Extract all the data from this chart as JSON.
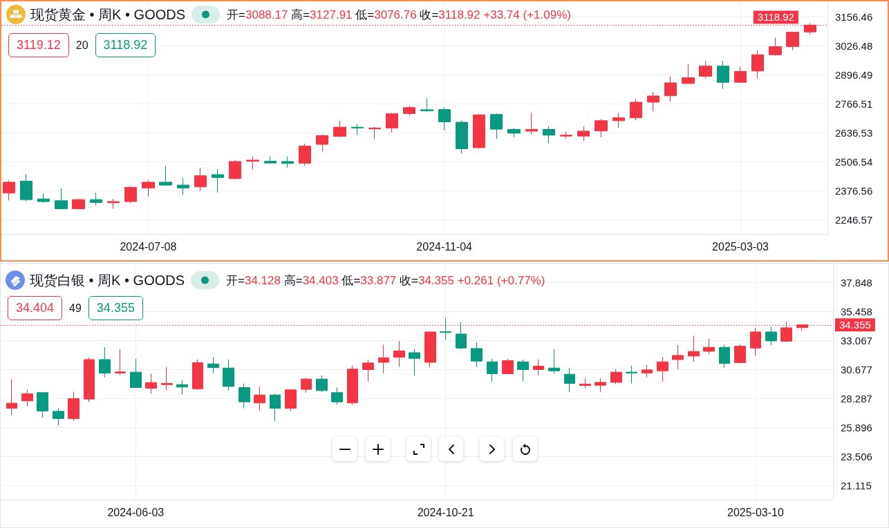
{
  "chart_data": [
    {
      "type": "candlestick",
      "title": "现货黄金 • 周K • GOODS",
      "subtitle": "开=3088.17 高=3127.91 低=3076.76 收=3118.92 +33.74 (+1.09%)",
      "annotations": [
        "3119.12",
        "20",
        "3118.92"
      ],
      "x": [
        "2024-05-13",
        "2024-05-20",
        "2024-05-27",
        "2024-06-03",
        "2024-06-10",
        "2024-06-17",
        "2024-06-24",
        "2024-07-01",
        "2024-07-08",
        "2024-07-15",
        "2024-07-22",
        "2024-07-29",
        "2024-08-05",
        "2024-08-12",
        "2024-08-19",
        "2024-08-26",
        "2024-09-02",
        "2024-09-09",
        "2024-09-16",
        "2024-09-23",
        "2024-09-30",
        "2024-10-07",
        "2024-10-14",
        "2024-10-21",
        "2024-10-28",
        "2024-11-04",
        "2024-11-11",
        "2024-11-18",
        "2024-11-25",
        "2024-12-02",
        "2024-12-09",
        "2024-12-16",
        "2024-12-23",
        "2024-12-30",
        "2025-01-06",
        "2025-01-13",
        "2025-01-20",
        "2025-01-27",
        "2025-02-03",
        "2025-02-10",
        "2025-02-17",
        "2025-02-24",
        "2025-03-03",
        "2025-03-10",
        "2025-03-17",
        "2025-03-24",
        "2025-03-31"
      ],
      "ohlc": [
        [
          2365,
          2424,
          2332,
          2414
        ],
        [
          2419,
          2451,
          2329,
          2336
        ],
        [
          2339,
          2365,
          2322,
          2327
        ],
        [
          2331,
          2386,
          2291,
          2295
        ],
        [
          2295,
          2339,
          2292,
          2336
        ],
        [
          2336,
          2367,
          2310,
          2323
        ],
        [
          2322,
          2339,
          2295,
          2327
        ],
        [
          2327,
          2396,
          2320,
          2391
        ],
        [
          2388,
          2424,
          2350,
          2414
        ],
        [
          2414,
          2487,
          2398,
          2401
        ],
        [
          2401,
          2432,
          2357,
          2388
        ],
        [
          2393,
          2479,
          2375,
          2443
        ],
        [
          2448,
          2473,
          2367,
          2435
        ],
        [
          2430,
          2513,
          2425,
          2507
        ],
        [
          2508,
          2530,
          2471,
          2513
        ],
        [
          2508,
          2530,
          2497,
          2500
        ],
        [
          2507,
          2530,
          2479,
          2498
        ],
        [
          2499,
          2587,
          2487,
          2576
        ],
        [
          2584,
          2628,
          2551,
          2623
        ],
        [
          2620,
          2690,
          2616,
          2661
        ],
        [
          2661,
          2675,
          2626,
          2657
        ],
        [
          2653,
          2662,
          2608,
          2657
        ],
        [
          2657,
          2726,
          2638,
          2721
        ],
        [
          2722,
          2757,
          2713,
          2749
        ],
        [
          2739,
          2791,
          2728,
          2734
        ],
        [
          2740,
          2749,
          2646,
          2685
        ],
        [
          2683,
          2690,
          2543,
          2564
        ],
        [
          2569,
          2719,
          2566,
          2716
        ],
        [
          2718,
          2722,
          2608,
          2652
        ],
        [
          2651,
          2657,
          2616,
          2634
        ],
        [
          2643,
          2726,
          2629,
          2651
        ],
        [
          2651,
          2665,
          2589,
          2625
        ],
        [
          2621,
          2641,
          2610,
          2625
        ],
        [
          2621,
          2665,
          2599,
          2643
        ],
        [
          2644,
          2698,
          2616,
          2690
        ],
        [
          2690,
          2726,
          2657,
          2703
        ],
        [
          2703,
          2786,
          2692,
          2773
        ],
        [
          2773,
          2819,
          2731,
          2801
        ],
        [
          2802,
          2888,
          2775,
          2860
        ],
        [
          2857,
          2943,
          2857,
          2883
        ],
        [
          2889,
          2958,
          2880,
          2935
        ],
        [
          2935,
          2959,
          2833,
          2862
        ],
        [
          2862,
          2931,
          2862,
          2911
        ],
        [
          2913,
          3005,
          2880,
          2986
        ],
        [
          2986,
          3062,
          2982,
          3022
        ],
        [
          3023,
          3087,
          3007,
          3087
        ],
        [
          3088.17,
          3127.91,
          3076.76,
          3118.92
        ]
      ],
      "xlim": [
        "2024-05-10",
        "2025-04-07"
      ],
      "xticks": [
        "2024-07-08",
        "2024-11-04",
        "2025-03-03"
      ],
      "ylim": [
        2181.6,
        3222.3
      ],
      "yticks": [
        2246.57,
        2376.56,
        2506.54,
        2636.53,
        2766.51,
        2896.49,
        3026.48,
        3156.46
      ],
      "grid": true,
      "ref_lines": [
        {
          "axis": "y",
          "value": 3118.92,
          "label": "3118.92",
          "color": "#f23645",
          "line_style": "dotted"
        }
      ]
    },
    {
      "type": "candlestick",
      "title": "现货白银 • 周K • GOODS",
      "subtitle": "开=34.128 高=34.403 低=33.877 收=34.355 +0.261 (+0.77%)",
      "annotations": [
        "34.404",
        "49",
        "34.355"
      ],
      "x": [
        "2024-04-08",
        "2024-04-15",
        "2024-04-22",
        "2024-04-29",
        "2024-05-06",
        "2024-05-13",
        "2024-05-20",
        "2024-05-27",
        "2024-06-03",
        "2024-06-10",
        "2024-06-17",
        "2024-06-24",
        "2024-07-01",
        "2024-07-08",
        "2024-07-15",
        "2024-07-22",
        "2024-07-29",
        "2024-08-05",
        "2024-08-12",
        "2024-08-19",
        "2024-08-26",
        "2024-09-02",
        "2024-09-09",
        "2024-09-16",
        "2024-09-23",
        "2024-09-30",
        "2024-10-07",
        "2024-10-14",
        "2024-10-21",
        "2024-10-28",
        "2024-11-04",
        "2024-11-11",
        "2024-11-18",
        "2024-11-25",
        "2024-12-02",
        "2024-12-09",
        "2024-12-16",
        "2024-12-23",
        "2024-12-30",
        "2025-01-06",
        "2025-01-13",
        "2025-01-20",
        "2025-01-27",
        "2025-02-03",
        "2025-02-10",
        "2025-02-17",
        "2025-02-24",
        "2025-03-03",
        "2025-03-10",
        "2025-03-17",
        "2025-03-24",
        "2025-03-31"
      ],
      "ohlc": [
        [
          27.47,
          29.84,
          26.9,
          27.89
        ],
        [
          28.08,
          28.99,
          27.62,
          28.67
        ],
        [
          28.76,
          28.76,
          26.71,
          27.24
        ],
        [
          27.22,
          27.47,
          26.05,
          26.62
        ],
        [
          26.62,
          28.84,
          26.43,
          28.27
        ],
        [
          28.23,
          31.64,
          27.98,
          31.49
        ],
        [
          31.49,
          32.5,
          30.03,
          30.37
        ],
        [
          30.37,
          32.35,
          30.22,
          30.47
        ],
        [
          30.45,
          31.55,
          29.18,
          29.18
        ],
        [
          29.12,
          30.32,
          28.67,
          29.59
        ],
        [
          29.42,
          30.88,
          28.95,
          29.52
        ],
        [
          29.42,
          29.78,
          28.61,
          29.22
        ],
        [
          29.08,
          31.49,
          28.99,
          31.23
        ],
        [
          31.13,
          31.7,
          30.37,
          30.83
        ],
        [
          30.79,
          31.49,
          28.93,
          29.27
        ],
        [
          29.18,
          29.5,
          27.47,
          28.0
        ],
        [
          27.91,
          29.27,
          27.28,
          28.57
        ],
        [
          28.57,
          28.67,
          26.43,
          27.47
        ],
        [
          27.47,
          28.99,
          27.24,
          28.99
        ],
        [
          29.03,
          29.99,
          28.76,
          29.88
        ],
        [
          29.88,
          30.18,
          28.8,
          28.93
        ],
        [
          28.76,
          29.18,
          27.75,
          28.0
        ],
        [
          27.91,
          30.98,
          27.75,
          30.7
        ],
        [
          30.66,
          31.49,
          29.69,
          31.21
        ],
        [
          31.26,
          32.73,
          30.37,
          31.64
        ],
        [
          31.68,
          33.03,
          30.88,
          32.21
        ],
        [
          32.06,
          32.35,
          30.16,
          31.59
        ],
        [
          31.26,
          33.77,
          30.85,
          33.77
        ],
        [
          33.79,
          34.91,
          33.1,
          33.73
        ],
        [
          33.6,
          34.58,
          32.36,
          32.44
        ],
        [
          32.4,
          32.91,
          30.88,
          31.36
        ],
        [
          31.3,
          31.55,
          29.69,
          30.32
        ],
        [
          30.32,
          31.55,
          30.32,
          31.4
        ],
        [
          31.3,
          31.49,
          29.69,
          30.66
        ],
        [
          30.66,
          31.49,
          30.16,
          30.94
        ],
        [
          30.79,
          32.35,
          30.32,
          30.56
        ],
        [
          30.28,
          30.79,
          28.8,
          29.52
        ],
        [
          29.35,
          29.94,
          29.14,
          29.46
        ],
        [
          29.37,
          29.94,
          28.8,
          29.61
        ],
        [
          29.61,
          30.7,
          29.46,
          30.45
        ],
        [
          30.45,
          30.98,
          29.52,
          30.37
        ],
        [
          30.37,
          31.04,
          30.03,
          30.64
        ],
        [
          30.56,
          31.7,
          29.69,
          31.3
        ],
        [
          31.49,
          32.69,
          30.7,
          31.83
        ],
        [
          31.78,
          33.45,
          31.32,
          32.16
        ],
        [
          32.17,
          33.2,
          31.93,
          32.5
        ],
        [
          32.5,
          32.74,
          30.83,
          31.17
        ],
        [
          31.23,
          32.73,
          31.17,
          32.59
        ],
        [
          32.44,
          34.11,
          31.83,
          33.77
        ],
        [
          33.77,
          34.2,
          32.69,
          33.03
        ],
        [
          33.01,
          34.62,
          32.91,
          34.11
        ],
        [
          34.128,
          34.403,
          33.877,
          34.355
        ]
      ],
      "xlim": [
        "2024-04-03",
        "2025-04-14"
      ],
      "xticks": [
        "2024-06-03",
        "2024-10-21",
        "2025-03-10"
      ],
      "ylim": [
        19.92,
        39.35
      ],
      "yticks": [
        21.115,
        23.506,
        25.896,
        28.287,
        30.677,
        33.067,
        35.458,
        37.848
      ],
      "grid": true,
      "ref_lines": [
        {
          "axis": "y",
          "value": 34.355,
          "label": "34.355",
          "color": "#f23645",
          "line_style": "dotted"
        }
      ]
    }
  ]
}
